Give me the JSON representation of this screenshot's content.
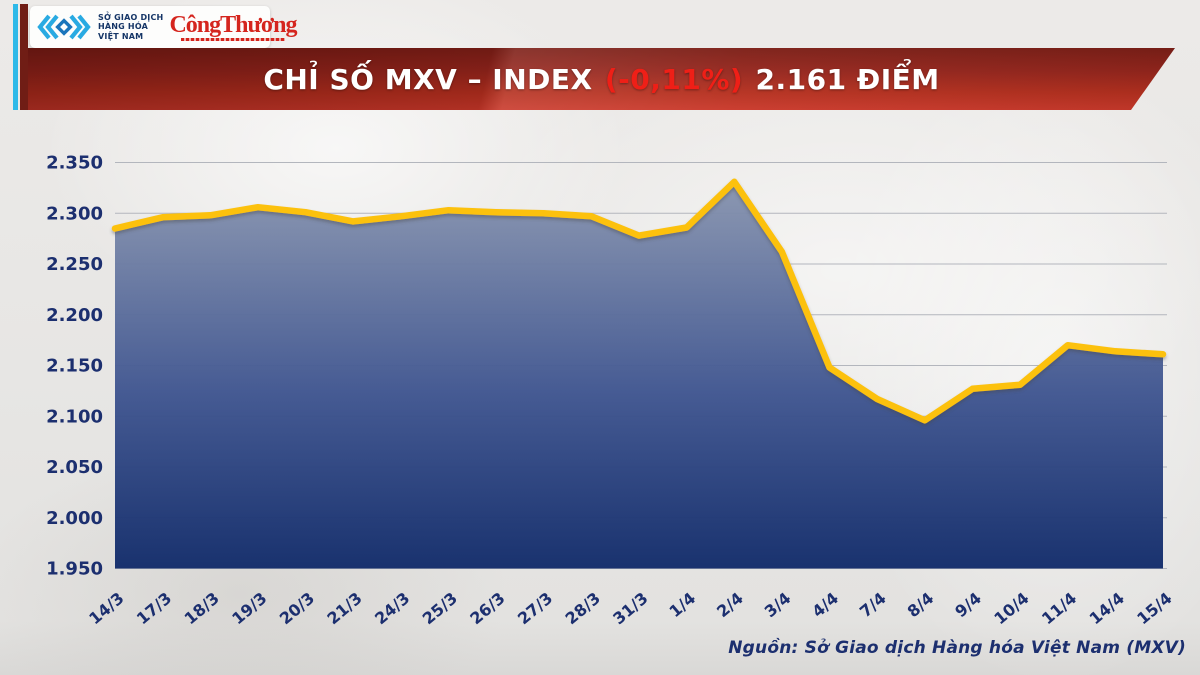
{
  "logo": {
    "mxv_name_lines": [
      "SỞ GIAO DỊCH",
      "HÀNG HÓA",
      "VIỆT NAM"
    ],
    "newspaper": "CôngThương"
  },
  "banner": {
    "title_prefix": "CHỈ SỐ MXV – INDEX ",
    "change_percent": "(-0,11%)",
    "title_suffix": " 2.161 ĐIỂM"
  },
  "chart_data": {
    "type": "area",
    "title": "CHỈ SỐ MXV – INDEX (-0,11%) 2.161 ĐIỂM",
    "categories": [
      "14/3",
      "17/3",
      "18/3",
      "19/3",
      "20/3",
      "21/3",
      "24/3",
      "25/3",
      "26/3",
      "27/3",
      "28/3",
      "31/3",
      "1/4",
      "2/4",
      "3/4",
      "4/4",
      "7/4",
      "8/4",
      "9/4",
      "10/4",
      "11/4",
      "14/4",
      "15/4"
    ],
    "values": [
      2.285,
      2.296,
      2.298,
      2.306,
      2.301,
      2.292,
      2.297,
      2.303,
      2.301,
      2.3,
      2.297,
      2.278,
      2.286,
      2.331,
      2.262,
      2.148,
      2.117,
      2.096,
      2.127,
      2.131,
      2.17,
      2.164,
      2.161
    ],
    "last_value": 2.161,
    "change_percent": -0.11,
    "ylim": [
      1.95,
      2.35
    ],
    "ytick_step": 0.05,
    "ytick_labels": [
      "2.350",
      "2.300",
      "2.250",
      "2.200",
      "2.150",
      "2.100",
      "2.050",
      "2.000",
      "1.950"
    ],
    "grid": true,
    "legend": "none",
    "colors": {
      "line": "#fcc10f",
      "fill_top": "#8a96b0",
      "fill_mid": "#3f5590",
      "fill_bottom": "#112b6a",
      "gridline": "#b3b6bd",
      "tick_text": "#1c2f6f"
    }
  },
  "footer": {
    "source": "Nguồn: Sở Giao dịch Hàng hóa Việt Nam (MXV)"
  }
}
